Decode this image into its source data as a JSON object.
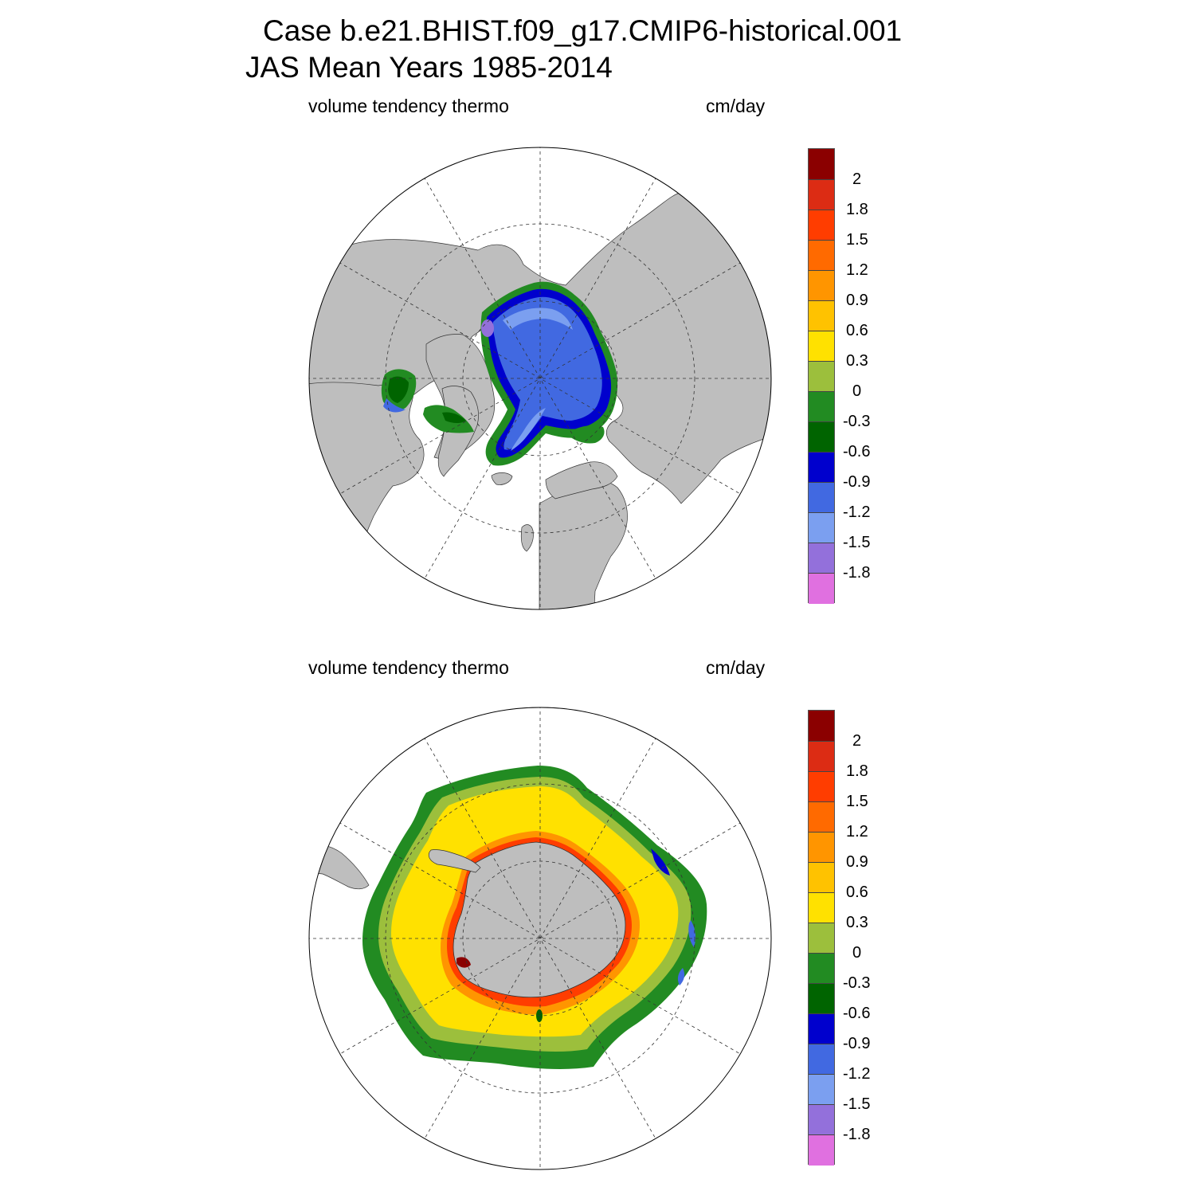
{
  "title": {
    "line1": "Case b.e21.BHIST.f09_g17.CMIP6-historical.001",
    "line2": "JAS Mean   Years 1985-2014"
  },
  "colorbar": {
    "tick_labels": [
      "2",
      "1.8",
      "1.5",
      "1.2",
      "0.9",
      "0.6",
      "0.3",
      "0",
      "-0.3",
      "-0.6",
      "-0.9",
      "-1.2",
      "-1.5",
      "-1.8"
    ],
    "colors": [
      "#8b0000",
      "#dc2c14",
      "#ff3d00",
      "#ff6a00",
      "#ff9500",
      "#ffc200",
      "#ffe100",
      "#9cbf3c",
      "#228b22",
      "#006400",
      "#0000cd",
      "#4169e1",
      "#7b9ff0",
      "#9370db",
      "#e070e0"
    ]
  },
  "land_color": "#bebebe",
  "panels": [
    {
      "id": "north",
      "variable": "volume tendency thermo",
      "units": "cm/day",
      "hemisphere": "Northern"
    },
    {
      "id": "south",
      "variable": "volume tendency thermo",
      "units": "cm/day",
      "hemisphere": "Southern"
    }
  ]
}
